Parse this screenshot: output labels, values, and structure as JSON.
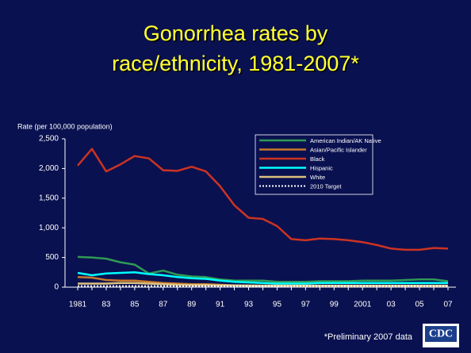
{
  "chart_data": {
    "type": "line",
    "title_lines": [
      "Gonorrhea rates by",
      "race/ethnicity, 1981-2007*"
    ],
    "y_label": "Rate (per 100,000 population)",
    "footnote": "*Preliminary 2007 data",
    "logo": "CDC",
    "categories": [
      "1981",
      null,
      "83",
      null,
      "85",
      null,
      "87",
      null,
      "89",
      null,
      "91",
      null,
      "93",
      null,
      "95",
      null,
      "97",
      null,
      "99",
      null,
      "2001",
      null,
      "03",
      null,
      "05",
      null,
      "07"
    ],
    "ylim": [
      0,
      2500
    ],
    "yticks": [
      0,
      500,
      {
        "value": 1000,
        "label": "1,000"
      },
      {
        "value": 1500,
        "label": "1,500"
      },
      {
        "value": 2000,
        "label": "2,000"
      },
      {
        "value": 2500,
        "label": "2,500"
      }
    ],
    "series": [
      {
        "name": "American Indian/AK Native",
        "color": "#2f9a55",
        "values": [
          510,
          500,
          480,
          420,
          380,
          230,
          280,
          210,
          180,
          170,
          130,
          110,
          110,
          110,
          90,
          90,
          90,
          100,
          100,
          100,
          110,
          110,
          110,
          120,
          130,
          130,
          100
        ]
      },
      {
        "name": "Asian/Pacific Islander",
        "color": "#c8782a",
        "values": [
          170,
          160,
          120,
          110,
          110,
          90,
          70,
          60,
          50,
          50,
          40,
          30,
          30,
          25,
          25,
          20,
          20,
          20,
          20,
          20,
          20,
          20,
          20,
          20,
          20,
          20,
          20
        ]
      },
      {
        "name": "Black",
        "color": "#cc3322",
        "values": [
          2050,
          2330,
          1950,
          2070,
          2210,
          2170,
          1970,
          1960,
          2030,
          1950,
          1700,
          1380,
          1170,
          1150,
          1030,
          810,
          790,
          820,
          810,
          790,
          760,
          710,
          650,
          630,
          630,
          660,
          650
        ]
      },
      {
        "name": "Hispanic",
        "color": "#00ffff",
        "values": [
          240,
          200,
          230,
          240,
          250,
          220,
          200,
          170,
          150,
          140,
          110,
          90,
          80,
          70,
          60,
          60,
          60,
          70,
          70,
          70,
          70,
          70,
          70,
          70,
          70,
          70,
          70
        ]
      },
      {
        "name": "White",
        "color": "#dcc080",
        "values": [
          60,
          60,
          60,
          70,
          70,
          60,
          50,
          40,
          35,
          35,
          30,
          30,
          25,
          25,
          25,
          25,
          25,
          25,
          25,
          25,
          25,
          25,
          25,
          25,
          25,
          25,
          25
        ]
      },
      {
        "name": "2010 Target",
        "color": "#ffffff",
        "style": "dotted",
        "values": [
          19,
          19,
          19,
          19,
          19,
          19,
          19,
          19,
          19,
          19,
          19,
          19,
          19,
          19,
          19,
          19,
          19,
          19,
          19,
          19,
          19,
          19,
          19,
          19,
          19,
          19,
          19
        ]
      }
    ]
  }
}
